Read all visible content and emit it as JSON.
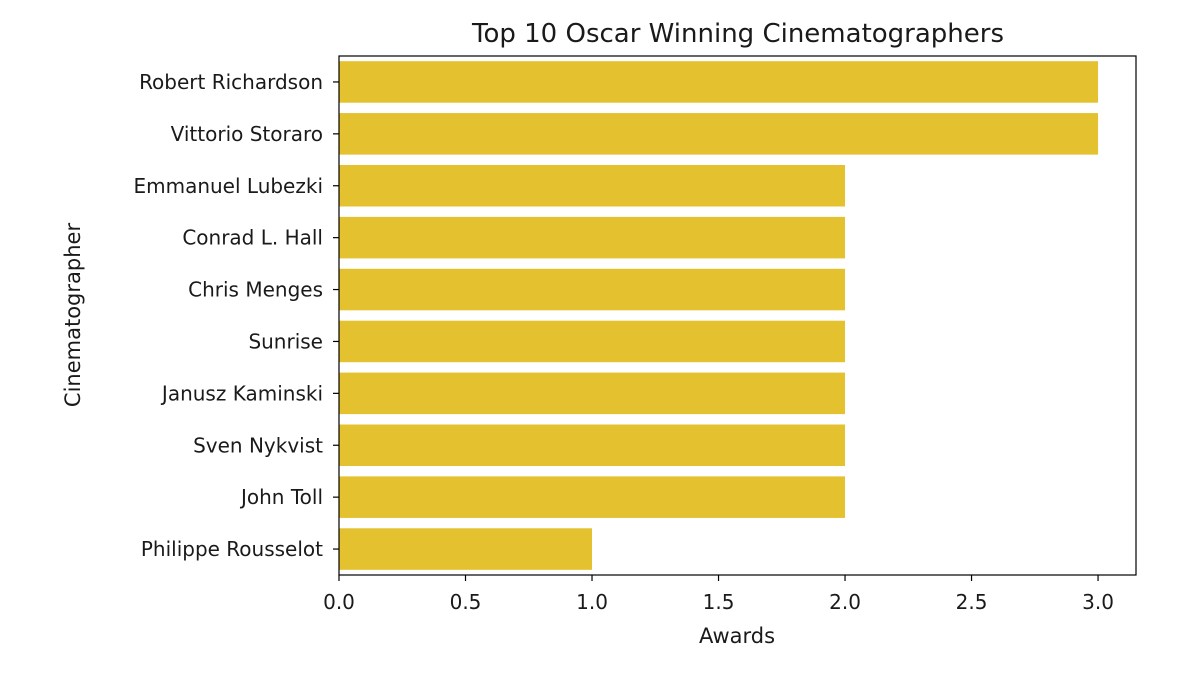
{
  "chart_data": {
    "type": "bar",
    "orientation": "horizontal",
    "title": "Top 10 Oscar Winning Cinematographers",
    "xlabel": "Awards",
    "ylabel": "Cinematographer",
    "categories": [
      "Robert Richardson",
      "Vittorio Storaro",
      "Emmanuel Lubezki",
      "Conrad L. Hall",
      "Chris Menges",
      "Sunrise",
      "Janusz Kaminski",
      "Sven Nykvist",
      "John Toll",
      "Philippe Rousselot"
    ],
    "values": [
      3,
      3,
      2,
      2,
      2,
      2,
      2,
      2,
      2,
      1
    ],
    "xlim": [
      0,
      3.15
    ],
    "xticks": [
      "0.0",
      "0.5",
      "1.0",
      "1.5",
      "2.0",
      "2.5",
      "3.0"
    ],
    "grid": false,
    "legend": "none",
    "bar_color": "#e3c12f",
    "axis_color": "#000000"
  }
}
